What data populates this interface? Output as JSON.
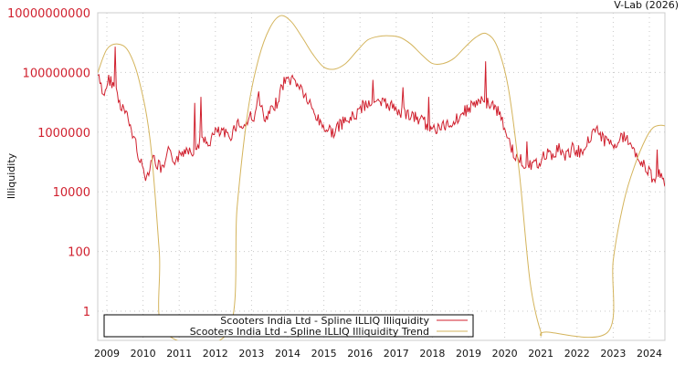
{
  "credit": "V-Lab (2026)",
  "chart_data": {
    "type": "line",
    "title": "",
    "xlabel": "",
    "ylabel": "Illiquidity",
    "yscale": "log",
    "ylim": [
      0.2,
      10000000000
    ],
    "xlim": [
      2008.75,
      2024.45
    ],
    "grid": true,
    "legend_position": "bottom-left-inside",
    "y_ticks": [
      {
        "value": 10000000000,
        "label": "10000000000"
      },
      {
        "value": 100000000,
        "label": "100000000"
      },
      {
        "value": 1000000,
        "label": "1000000"
      },
      {
        "value": 10000,
        "label": "10000"
      },
      {
        "value": 100,
        "label": "100"
      },
      {
        "value": 1,
        "label": "1"
      }
    ],
    "x_ticks": [
      "2009",
      "2010",
      "2011",
      "2012",
      "2013",
      "2014",
      "2015",
      "2016",
      "2017",
      "2018",
      "2019",
      "2020",
      "2021",
      "2022",
      "2023",
      "2024"
    ],
    "series": [
      {
        "name": "Scooters India Ltd - Spline ILLIQ Illiquidity",
        "color": "#d0202e",
        "x": [
          2008.75,
          2008.9,
          2009.05,
          2009.2,
          2009.35,
          2009.5,
          2009.65,
          2009.8,
          2009.95,
          2010.1,
          2010.25,
          2010.4,
          2010.55,
          2010.7,
          2010.85,
          2011.0,
          2011.2,
          2011.4,
          2011.6,
          2011.8,
          2012.0,
          2012.2,
          2012.4,
          2012.6,
          2012.8,
          2013.0,
          2013.1,
          2013.2,
          2013.35,
          2013.5,
          2013.7,
          2013.9,
          2014.1,
          2014.3,
          2014.5,
          2014.7,
          2014.9,
          2015.1,
          2015.3,
          2015.5,
          2015.7,
          2015.9,
          2016.1,
          2016.3,
          2016.5,
          2016.7,
          2016.9,
          2017.1,
          2017.3,
          2017.5,
          2017.7,
          2017.9,
          2018.1,
          2018.3,
          2018.5,
          2018.7,
          2018.9,
          2019.1,
          2019.3,
          2019.5,
          2019.7,
          2019.9,
          2020.0,
          2020.1,
          2020.3,
          2020.5,
          2020.7,
          2020.9,
          2021.1,
          2021.3,
          2021.5,
          2021.7,
          2021.9,
          2022.1,
          2022.3,
          2022.5,
          2022.7,
          2022.9,
          2023.1,
          2023.3,
          2023.5,
          2023.7,
          2023.9,
          2024.1,
          2024.3,
          2024.45
        ],
        "values": [
          80000000,
          15000000,
          60000000,
          40000000,
          10000000,
          5000000,
          1500000,
          400000,
          80000,
          30000,
          150000,
          80000,
          50000,
          200000,
          120000,
          150000,
          300000,
          250000,
          500000,
          400000,
          1000000,
          900000,
          700000,
          2000000,
          1500000,
          4000000,
          3000000,
          20000000,
          2000000,
          4000000,
          10000000,
          50000000,
          60000000,
          40000000,
          15000000,
          5000000,
          2000000,
          1200000,
          1000000,
          2000000,
          2500000,
          4000000,
          8000000,
          10000000,
          9000000,
          9000000,
          7000000,
          5000000,
          4000000,
          3000000,
          2500000,
          1500000,
          1200000,
          1500000,
          2000000,
          3000000,
          5000000,
          8000000,
          10000000,
          10000000,
          8000000,
          3000000,
          1500000,
          500000,
          150000,
          100000,
          70000,
          80000,
          200000,
          150000,
          300000,
          150000,
          300000,
          200000,
          500000,
          1500000,
          600000,
          400000,
          500000,
          700000,
          400000,
          150000,
          60000,
          30000,
          40000,
          20000
        ]
      },
      {
        "name": "Scooters India Ltd - Spline ILLIQ Illiquidity Trend",
        "color": "#d4b45c",
        "x": [
          2008.75,
          2009.0,
          2009.3,
          2009.6,
          2009.9,
          2010.2,
          2010.45,
          2010.6,
          2012.35,
          2012.6,
          2012.9,
          2013.2,
          2013.5,
          2013.8,
          2014.1,
          2014.4,
          2014.7,
          2015.0,
          2015.3,
          2015.6,
          2015.9,
          2016.2,
          2016.5,
          2016.8,
          2017.1,
          2017.4,
          2017.7,
          2018.0,
          2018.3,
          2018.6,
          2018.9,
          2019.2,
          2019.5,
          2019.8,
          2020.1,
          2020.4,
          2020.7,
          2021.0,
          2021.15,
          2022.85,
          2023.0,
          2023.3,
          2023.6,
          2023.9,
          2024.1,
          2024.3,
          2024.45
        ],
        "values": [
          100000000,
          600000000,
          900000000,
          500000000,
          50000000,
          500000,
          100,
          0.2,
          0.2,
          3000,
          5000000,
          300000000,
          3000000000,
          8000000000,
          5000000000,
          1500000000,
          400000000,
          150000000,
          130000000,
          200000000,
          500000000,
          1200000000,
          1600000000,
          1700000000,
          1500000000,
          900000000,
          400000000,
          200000000,
          200000000,
          300000000,
          700000000,
          1500000000,
          2000000000,
          700000000,
          30000000,
          50000,
          10,
          0.2,
          0.2,
          0.2,
          50,
          5000,
          80000,
          600000,
          1400000,
          1700000,
          1600000
        ]
      }
    ]
  },
  "legend": {
    "items": [
      {
        "label": "Scooters India Ltd - Spline ILLIQ Illiquidity",
        "color": "#d0202e"
      },
      {
        "label": "Scooters India Ltd - Spline ILLIQ Illiquidity Trend",
        "color": "#d4b45c"
      }
    ]
  }
}
